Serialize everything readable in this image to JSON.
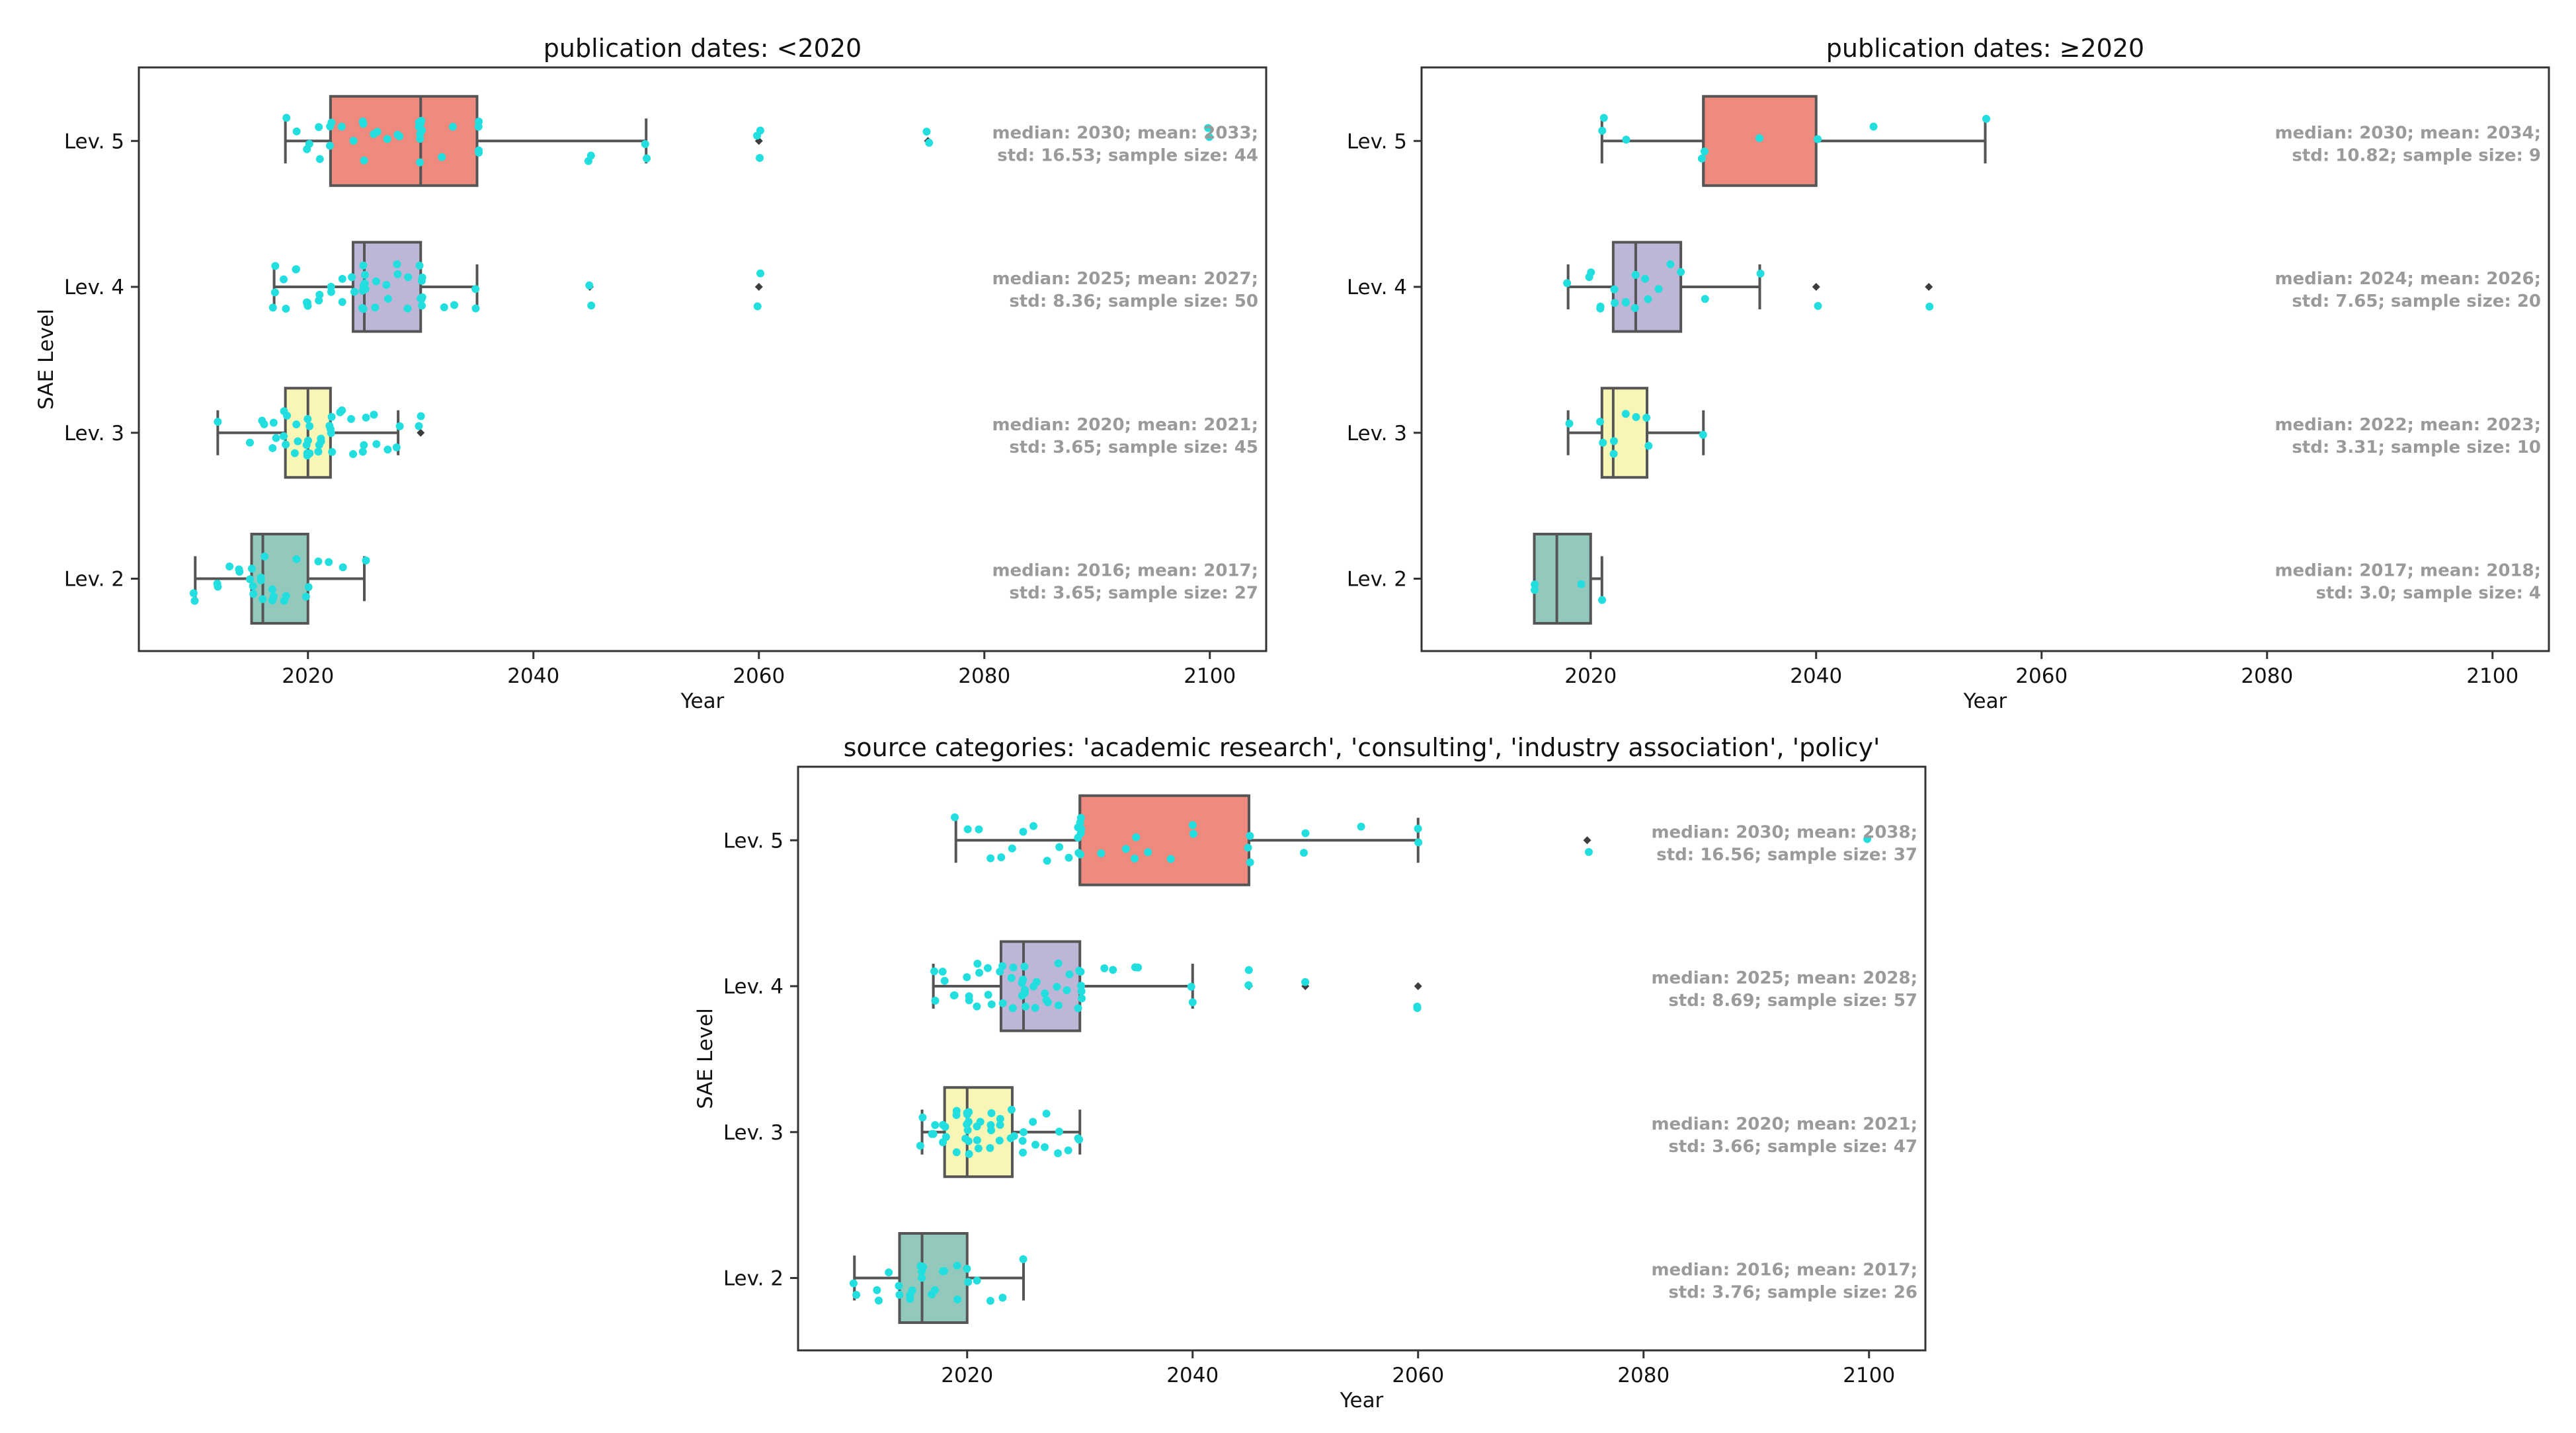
{
  "chart_data": [
    {
      "type": "box",
      "title": "publication dates: <2020",
      "xlabel": "Year",
      "ylabel": "SAE Level",
      "xlim": [
        2005,
        2105
      ],
      "xticks": [
        "2020",
        "2040",
        "2060",
        "2080",
        "2100"
      ],
      "categories": [
        "Lev. 5",
        "Lev. 4",
        "Lev. 3",
        "Lev. 2"
      ],
      "colors": [
        "#ee8b7e",
        "#bdb6d6",
        "#f8f6b6",
        "#93c8bc"
      ],
      "point_color": "#22dede",
      "series": [
        {
          "category": "Lev. 5",
          "whisker_low": 2018,
          "q1": 2022,
          "median": 2030,
          "q3": 2035,
          "whisker_high": 2050,
          "outliers": [
            2060,
            2075
          ],
          "points": [
            2018,
            2019,
            2020,
            2020,
            2021,
            2021,
            2022,
            2022,
            2022,
            2023,
            2024,
            2025,
            2025,
            2025,
            2026,
            2026,
            2027,
            2028,
            2028,
            2030,
            2030,
            2030,
            2030,
            2030,
            2030,
            2030,
            2030,
            2032,
            2033,
            2035,
            2035,
            2035,
            2035,
            2045,
            2045,
            2050,
            2050,
            2060,
            2060,
            2060,
            2075,
            2075,
            2100,
            2100
          ],
          "stats_line1": "median: 2030; mean: 2033;",
          "stats_line2": "std: 16.53; sample size: 44"
        },
        {
          "category": "Lev. 4",
          "whisker_low": 2017,
          "q1": 2024,
          "median": 2025,
          "q3": 2030,
          "whisker_high": 2035,
          "outliers": [
            2045,
            2060
          ],
          "points": [
            2017,
            2017,
            2017,
            2018,
            2018,
            2019,
            2019,
            2020,
            2020,
            2020,
            2020,
            2021,
            2021,
            2022,
            2022,
            2023,
            2023,
            2024,
            2024,
            2025,
            2025,
            2025,
            2025,
            2025,
            2025,
            2025,
            2025,
            2026,
            2026,
            2027,
            2027,
            2028,
            2028,
            2029,
            2029,
            2030,
            2030,
            2030,
            2030,
            2030,
            2030,
            2030,
            2032,
            2033,
            2035,
            2035,
            2045,
            2045,
            2060,
            2060
          ],
          "stats_line1": "median: 2025; mean: 2027;",
          "stats_line2": "std: 8.36; sample size: 50"
        },
        {
          "category": "Lev. 3",
          "whisker_low": 2012,
          "q1": 2018,
          "median": 2020,
          "q3": 2022,
          "whisker_high": 2028,
          "outliers": [
            2030
          ],
          "points": [
            2012,
            2015,
            2016,
            2016,
            2017,
            2017,
            2017,
            2018,
            2018,
            2018,
            2018,
            2019,
            2019,
            2019,
            2020,
            2020,
            2020,
            2020,
            2020,
            2020,
            2020,
            2020,
            2021,
            2021,
            2021,
            2021,
            2022,
            2022,
            2022,
            2022,
            2022,
            2023,
            2023,
            2024,
            2024,
            2025,
            2025,
            2025,
            2026,
            2026,
            2027,
            2028,
            2028,
            2030,
            2030
          ],
          "stats_line1": "median: 2020; mean: 2021;",
          "stats_line2": "std: 3.65; sample size: 45"
        },
        {
          "category": "Lev. 2",
          "whisker_low": 2010,
          "q1": 2015,
          "median": 2016,
          "q3": 2020,
          "whisker_high": 2025,
          "outliers": [],
          "points": [
            2010,
            2010,
            2012,
            2012,
            2013,
            2014,
            2014,
            2015,
            2015,
            2015,
            2015,
            2016,
            2016,
            2016,
            2016,
            2017,
            2017,
            2017,
            2018,
            2018,
            2019,
            2020,
            2020,
            2021,
            2022,
            2023,
            2025
          ],
          "stats_line1": "median: 2016; mean: 2017;",
          "stats_line2": "std: 3.65; sample size: 27"
        }
      ]
    },
    {
      "type": "box",
      "title": "publication dates: ≥2020",
      "xlabel": "Year",
      "ylabel": "",
      "xlim": [
        2005,
        2105
      ],
      "xticks": [
        "2020",
        "2040",
        "2060",
        "2080",
        "2100"
      ],
      "categories": [
        "Lev. 5",
        "Lev. 4",
        "Lev. 3",
        "Lev. 2"
      ],
      "colors": [
        "#ee8b7e",
        "#bdb6d6",
        "#f8f6b6",
        "#93c8bc"
      ],
      "point_color": "#22dede",
      "series": [
        {
          "category": "Lev. 5",
          "whisker_low": 2021,
          "q1": 2030,
          "median": 2030,
          "q3": 2040,
          "whisker_high": 2055,
          "outliers": [],
          "points": [
            2021,
            2021,
            2023,
            2030,
            2030,
            2035,
            2040,
            2045,
            2055
          ],
          "stats_line1": "median: 2030; mean: 2034;",
          "stats_line2": "std: 10.82; sample size: 9"
        },
        {
          "category": "Lev. 4",
          "whisker_low": 2018,
          "q1": 2022,
          "median": 2024,
          "q3": 2028,
          "whisker_high": 2035,
          "outliers": [
            2040,
            2050
          ],
          "points": [
            2018,
            2020,
            2020,
            2021,
            2021,
            2022,
            2022,
            2023,
            2023,
            2024,
            2024,
            2025,
            2025,
            2026,
            2027,
            2028,
            2030,
            2035,
            2040,
            2050
          ],
          "stats_line1": "median: 2024; mean: 2026;",
          "stats_line2": "std: 7.65; sample size: 20"
        },
        {
          "category": "Lev. 3",
          "whisker_low": 2018,
          "q1": 2021,
          "median": 2022,
          "q3": 2025,
          "whisker_high": 2030,
          "outliers": [],
          "points": [
            2018,
            2021,
            2021,
            2022,
            2022,
            2023,
            2024,
            2025,
            2025,
            2030
          ],
          "stats_line1": "median: 2022; mean: 2023;",
          "stats_line2": "std: 3.31; sample size: 10"
        },
        {
          "category": "Lev. 2",
          "whisker_low": 2015,
          "q1": 2015,
          "median": 2017,
          "q3": 2020,
          "whisker_high": 2021,
          "outliers": [],
          "points": [
            2015,
            2015,
            2019,
            2021
          ],
          "stats_line1": "median: 2017; mean: 2018;",
          "stats_line2": "std: 3.0; sample size: 4"
        }
      ]
    },
    {
      "type": "box",
      "title": "source categories: 'academic research', 'consulting', 'industry association', 'policy'",
      "xlabel": "Year",
      "ylabel": "SAE Level",
      "xlim": [
        2005,
        2105
      ],
      "xticks": [
        "2020",
        "2040",
        "2060",
        "2080",
        "2100"
      ],
      "categories": [
        "Lev. 5",
        "Lev. 4",
        "Lev. 3",
        "Lev. 2"
      ],
      "colors": [
        "#ee8b7e",
        "#bdb6d6",
        "#f8f6b6",
        "#93c8bc"
      ],
      "point_color": "#22dede",
      "series": [
        {
          "category": "Lev. 5",
          "whisker_low": 2019,
          "q1": 2030,
          "median": 2030,
          "q3": 2045,
          "whisker_high": 2060,
          "outliers": [
            2075
          ],
          "points": [
            2019,
            2020,
            2021,
            2022,
            2023,
            2024,
            2025,
            2026,
            2027,
            2028,
            2029,
            2030,
            2030,
            2030,
            2030,
            2030,
            2030,
            2030,
            2030,
            2032,
            2034,
            2035,
            2035,
            2036,
            2038,
            2040,
            2040,
            2045,
            2045,
            2045,
            2050,
            2050,
            2055,
            2060,
            2060,
            2075,
            2100
          ],
          "stats_line1": "median: 2030; mean: 2038;",
          "stats_line2": "std: 16.56; sample size: 37"
        },
        {
          "category": "Lev. 4",
          "whisker_low": 2017,
          "q1": 2023,
          "median": 2025,
          "q3": 2030,
          "whisker_high": 2040,
          "outliers": [
            2045,
            2050,
            2060
          ],
          "points": [
            2017,
            2017,
            2018,
            2018,
            2019,
            2019,
            2020,
            2020,
            2020,
            2021,
            2021,
            2021,
            2022,
            2022,
            2022,
            2023,
            2023,
            2023,
            2024,
            2024,
            2024,
            2025,
            2025,
            2025,
            2025,
            2025,
            2025,
            2025,
            2025,
            2026,
            2026,
            2026,
            2027,
            2027,
            2027,
            2028,
            2028,
            2028,
            2029,
            2029,
            2030,
            2030,
            2030,
            2030,
            2030,
            2030,
            2032,
            2033,
            2035,
            2035,
            2040,
            2040,
            2045,
            2045,
            2050,
            2060,
            2060
          ],
          "stats_line1": "median: 2025; mean: 2028;",
          "stats_line2": "std: 8.69; sample size: 57"
        },
        {
          "category": "Lev. 3",
          "whisker_low": 2016,
          "q1": 2018,
          "median": 2020,
          "q3": 2024,
          "whisker_high": 2030,
          "outliers": [],
          "points": [
            2016,
            2016,
            2017,
            2017,
            2017,
            2018,
            2018,
            2018,
            2018,
            2019,
            2019,
            2019,
            2020,
            2020,
            2020,
            2020,
            2020,
            2020,
            2020,
            2020,
            2020,
            2021,
            2021,
            2021,
            2021,
            2022,
            2022,
            2022,
            2022,
            2023,
            2023,
            2023,
            2024,
            2024,
            2024,
            2025,
            2025,
            2025,
            2026,
            2026,
            2027,
            2027,
            2028,
            2028,
            2029,
            2030,
            2030
          ],
          "stats_line1": "median: 2020; mean: 2021;",
          "stats_line2": "std: 3.66; sample size: 47"
        },
        {
          "category": "Lev. 2",
          "whisker_low": 2010,
          "q1": 2014,
          "median": 2016,
          "q3": 2020,
          "whisker_high": 2025,
          "outliers": [],
          "points": [
            2010,
            2010,
            2012,
            2012,
            2013,
            2014,
            2014,
            2015,
            2015,
            2015,
            2016,
            2016,
            2016,
            2016,
            2017,
            2017,
            2018,
            2018,
            2019,
            2019,
            2020,
            2020,
            2021,
            2022,
            2023,
            2025
          ],
          "stats_line1": "median: 2016; mean: 2017;",
          "stats_line2": "std: 3.76; sample size: 26"
        }
      ]
    }
  ]
}
